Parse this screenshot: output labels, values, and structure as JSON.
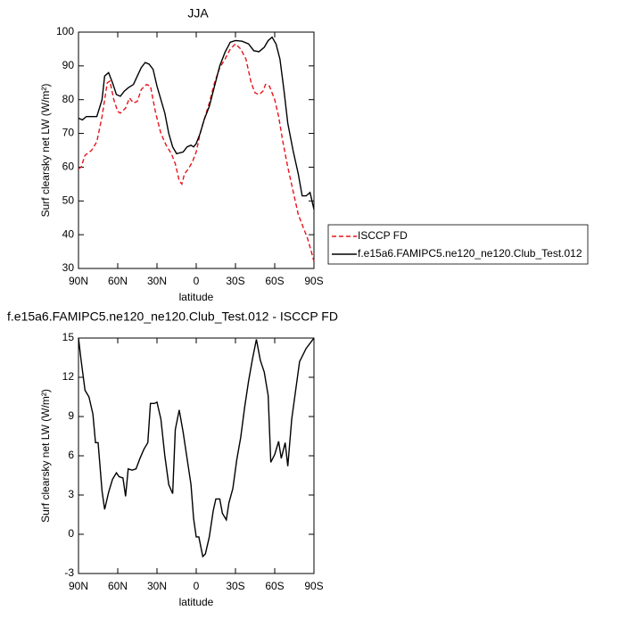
{
  "chart_data": [
    {
      "type": "line",
      "title": "JJA",
      "xlabel": "latitude",
      "ylabel": "Surf clearsky net LW (W/m²)",
      "xlim": [
        90,
        -90
      ],
      "ylim": [
        30,
        100
      ],
      "xticks": [
        {
          "value": 90,
          "label": "90N"
        },
        {
          "value": 60,
          "label": "60N"
        },
        {
          "value": 30,
          "label": "30N"
        },
        0,
        {
          "value": -30,
          "label": "30S"
        },
        {
          "value": -60,
          "label": "60S"
        },
        {
          "value": -90,
          "label": "90S"
        }
      ],
      "yticks": [
        30,
        40,
        50,
        60,
        70,
        80,
        90,
        100
      ],
      "series": [
        {
          "name": "ISCCP FD",
          "color": "#e8141a",
          "dash": true,
          "x": [
            90,
            88,
            85,
            80,
            76,
            72,
            68,
            66,
            63,
            60,
            58,
            54,
            51,
            48,
            45,
            42,
            38,
            35,
            31,
            27,
            23,
            19,
            16,
            13,
            11,
            9,
            6,
            3,
            0,
            -3,
            -6,
            -10,
            -14,
            -18,
            -22,
            -26,
            -30,
            -34,
            -38,
            -42,
            -45,
            -48,
            -51,
            -53,
            -56,
            -60,
            -63,
            -66,
            -70,
            -74,
            -78,
            -82,
            -85,
            -88,
            -90
          ],
          "values": [
            59.5,
            60,
            63.5,
            65,
            67.5,
            75,
            85,
            85.5,
            80,
            76.5,
            76,
            77.5,
            80.5,
            79,
            79.5,
            83,
            84.5,
            84,
            76,
            70,
            66.5,
            64,
            61,
            56,
            55,
            58,
            59.5,
            61.5,
            64.5,
            70,
            74,
            79,
            85,
            89.5,
            92,
            95,
            96.5,
            95,
            92,
            85,
            82,
            81.5,
            82.5,
            84.5,
            84,
            80,
            75,
            68,
            60,
            53,
            46,
            42,
            39,
            35,
            32
          ]
        },
        {
          "name": "f.e15a6.FAMIPC5.ne120_ne120.Club_Test.012",
          "color": "#000000",
          "dash": false,
          "x": [
            90,
            87,
            84,
            80,
            76,
            72,
            70,
            67,
            64,
            61,
            58,
            55,
            52,
            48,
            45,
            42,
            39,
            36,
            33,
            30,
            27,
            24,
            21,
            18,
            15,
            10,
            7,
            4,
            2,
            0,
            -3,
            -6,
            -10,
            -14,
            -18,
            -22,
            -26,
            -30,
            -35,
            -40,
            -44,
            -48,
            -52,
            -55,
            -58,
            -61,
            -64,
            -67,
            -70,
            -74,
            -78,
            -81,
            -84,
            -87,
            -90
          ],
          "values": [
            74.5,
            74,
            75,
            75,
            75,
            80,
            87,
            88,
            85,
            81.5,
            81,
            82.5,
            83.5,
            84.5,
            87,
            89.5,
            91,
            90.5,
            89,
            84,
            80,
            76,
            70,
            66,
            64,
            64.5,
            66,
            66.5,
            66,
            67,
            70,
            74,
            78,
            84,
            90,
            94,
            97,
            97.5,
            97.3,
            96.5,
            94.5,
            94.2,
            95.5,
            97.5,
            98.5,
            96.5,
            92,
            83,
            73,
            65,
            58,
            51.5,
            51.5,
            52.5,
            47.5
          ]
        }
      ]
    },
    {
      "type": "line",
      "title": "f.e15a6.FAMIPC5.ne120_ne120.Club_Test.012 - ISCCP FD",
      "xlabel": "latitude",
      "ylabel": "Surf clearsky net LW (W/m²)",
      "xlim": [
        90,
        -90
      ],
      "ylim": [
        -3,
        15
      ],
      "xticks": [
        {
          "value": 90,
          "label": "90N"
        },
        {
          "value": 60,
          "label": "60N"
        },
        {
          "value": 30,
          "label": "30N"
        },
        0,
        {
          "value": -30,
          "label": "30S"
        },
        {
          "value": -60,
          "label": "60S"
        },
        {
          "value": -90,
          "label": "90S"
        }
      ],
      "yticks": [
        -3,
        0,
        3,
        6,
        9,
        12,
        15
      ],
      "series": [
        {
          "color": "#000000",
          "dash": false,
          "x": [
            90,
            88,
            85,
            82,
            79,
            77,
            75,
            72,
            70,
            67,
            64,
            61,
            59,
            56,
            54,
            52,
            49,
            46,
            43,
            40,
            37,
            35,
            32,
            30,
            27,
            24,
            21,
            18,
            16,
            13,
            10,
            7,
            4,
            2,
            0,
            -2,
            -5,
            -7,
            -10,
            -13,
            -15,
            -18,
            -20,
            -23,
            -25,
            -28,
            -31,
            -34,
            -37,
            -40,
            -43,
            -46,
            -49,
            -52,
            -55,
            -57,
            -60,
            -63,
            -65,
            -68,
            -70,
            -73,
            -79,
            -84,
            -90
          ],
          "values": [
            15,
            13.3,
            11,
            10.5,
            9.2,
            7,
            7,
            3.3,
            1.9,
            3.2,
            4.2,
            4.7,
            4.4,
            4.3,
            2.9,
            5,
            4.9,
            5,
            5.8,
            6.5,
            7,
            10,
            10,
            10.1,
            8.8,
            6,
            3.8,
            3.1,
            8,
            9.5,
            7.8,
            5.8,
            3.8,
            1.2,
            -0.2,
            -0.2,
            -1.7,
            -1.5,
            -0.2,
            1.8,
            2.7,
            2.7,
            1.6,
            1.1,
            2.4,
            3.5,
            5.7,
            7.4,
            9.7,
            11.7,
            13.4,
            14.9,
            13.3,
            12.4,
            10.6,
            5.5,
            6.1,
            7.1,
            5.8,
            7,
            5.2,
            8.8,
            13.2,
            14.2,
            15
          ]
        }
      ]
    }
  ]
}
